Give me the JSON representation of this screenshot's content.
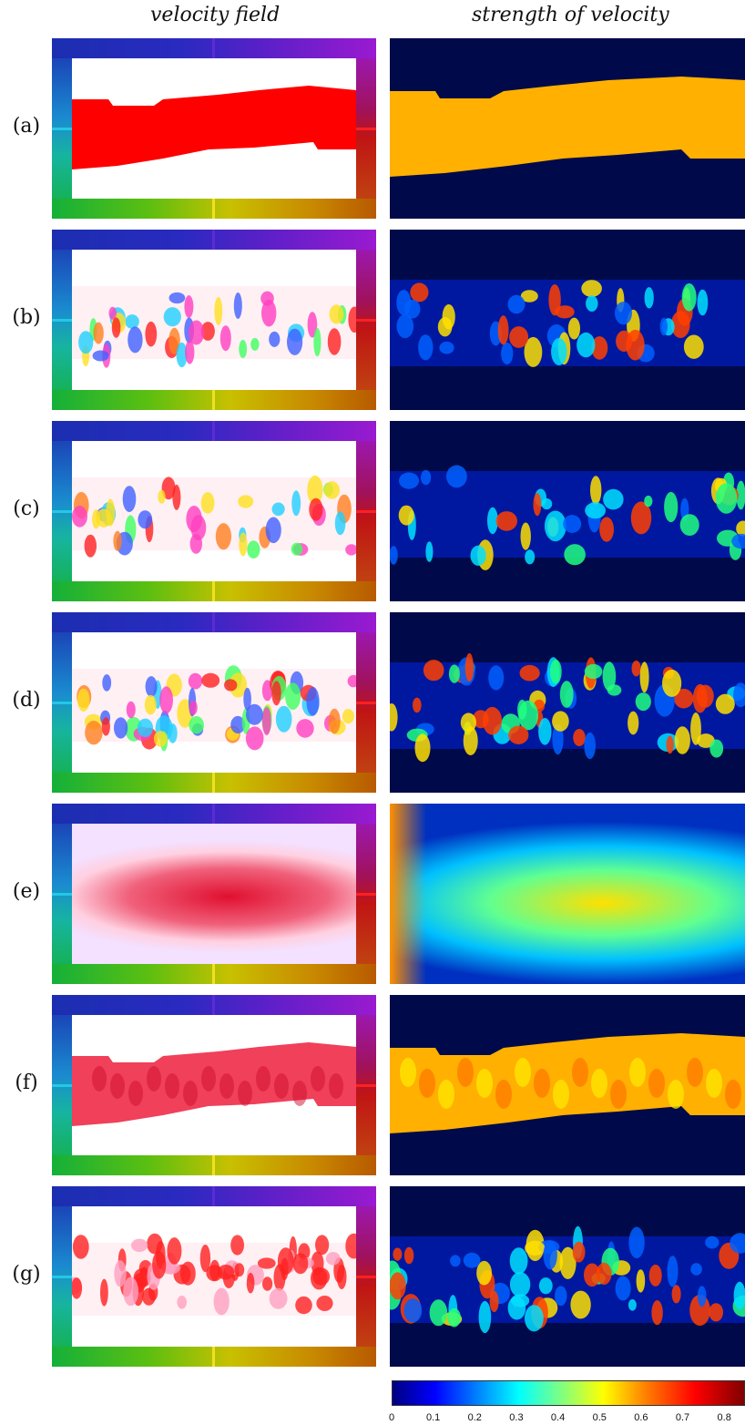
{
  "titles": {
    "left": "velocity field",
    "right": "strength of velocity"
  },
  "rows": [
    {
      "label": "(a)"
    },
    {
      "label": "(b)"
    },
    {
      "label": "(c)"
    },
    {
      "label": "(d)"
    },
    {
      "label": "(e)"
    },
    {
      "label": "(f)"
    },
    {
      "label": "(g)"
    }
  ],
  "colorbar": {
    "ticks": [
      "0",
      "0.1",
      "0.2",
      "0.3",
      "0.4",
      "0.5",
      "0.6",
      "0.7",
      "0.8"
    ],
    "colormap": "jet",
    "min": 0,
    "max": 0.85
  },
  "colors": {
    "background_dark": "#000a4a",
    "band_orange": "#ffb000",
    "band_red": "#ff0000"
  }
}
